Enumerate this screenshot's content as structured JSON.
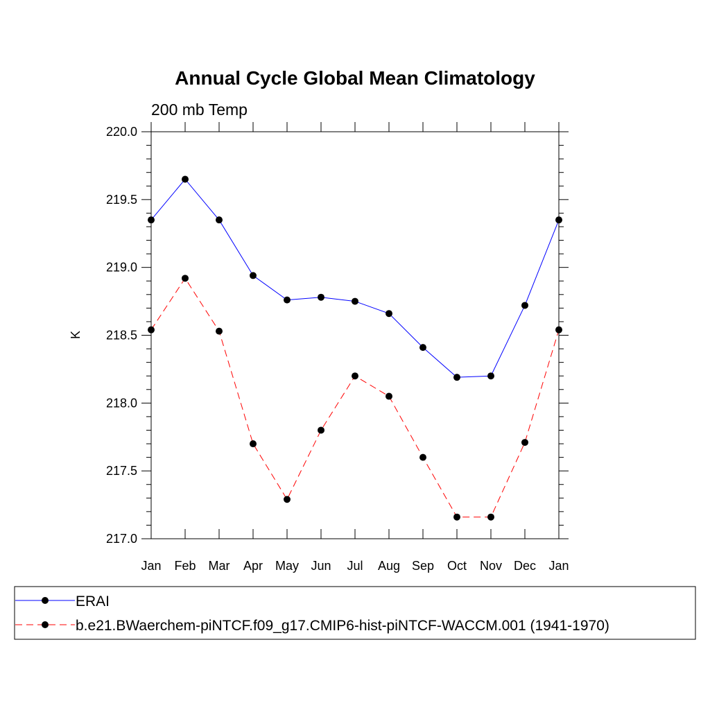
{
  "chart_data": {
    "type": "line",
    "title": "Annual Cycle Global Mean Climatology",
    "subtitle": "200 mb Temp",
    "ylabel": "K",
    "xlabel": "",
    "categories": [
      "Jan",
      "Feb",
      "Mar",
      "Apr",
      "May",
      "Jun",
      "Jul",
      "Aug",
      "Sep",
      "Oct",
      "Nov",
      "Dec",
      "Jan"
    ],
    "ylim": [
      217.0,
      220.0
    ],
    "yticks": [
      "217.0",
      "217.5",
      "218.0",
      "218.5",
      "219.0",
      "219.5",
      "220.0"
    ],
    "grid": false,
    "legend_placement": "bottom",
    "series": [
      {
        "name": "ERAI",
        "color": "#0000ff",
        "dash": "solid",
        "marker": "circle",
        "values": [
          219.35,
          219.65,
          219.35,
          218.94,
          218.76,
          218.78,
          218.75,
          218.66,
          218.41,
          218.19,
          218.2,
          218.72,
          219.35
        ]
      },
      {
        "name": "b.e21.BWaerchem-piNTCF.f09_g17.CMIP6-hist-piNTCF-WACCM.001 (1941-1970)",
        "color": "#ff0000",
        "dash": "dashed",
        "marker": "circle",
        "values": [
          218.54,
          218.92,
          218.53,
          217.7,
          217.29,
          217.8,
          218.2,
          218.05,
          217.6,
          217.16,
          217.16,
          217.71,
          218.54
        ]
      }
    ]
  }
}
